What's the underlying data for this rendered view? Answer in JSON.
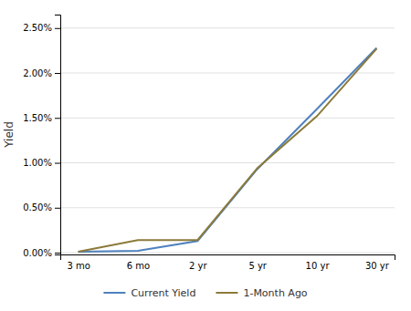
{
  "chart_data": {
    "type": "line",
    "ylabel": "Yield",
    "categories": [
      "3 mo",
      "6 mo",
      "2 yr",
      "5 yr",
      "10 yr",
      "30 yr"
    ],
    "series": [
      {
        "name": "Current Yield",
        "color": "#4f81bd",
        "values": [
          0.01,
          0.02,
          0.13,
          0.93,
          1.6,
          2.28
        ]
      },
      {
        "name": "1-Month Ago",
        "color": "#8c7a3a",
        "values": [
          0.01,
          0.14,
          0.14,
          0.94,
          1.52,
          2.27
        ]
      }
    ],
    "ylim": [
      -0.02,
      2.65
    ],
    "yticks": [
      {
        "value": 0.0,
        "label": "0.00%"
      },
      {
        "value": 0.5,
        "label": "0.50%"
      },
      {
        "value": 1.0,
        "label": "1.00%"
      },
      {
        "value": 1.5,
        "label": "1.50%"
      },
      {
        "value": 2.0,
        "label": "2.00%"
      },
      {
        "value": 2.5,
        "label": "2.50%"
      }
    ],
    "grid": true,
    "legend": "bottom"
  }
}
